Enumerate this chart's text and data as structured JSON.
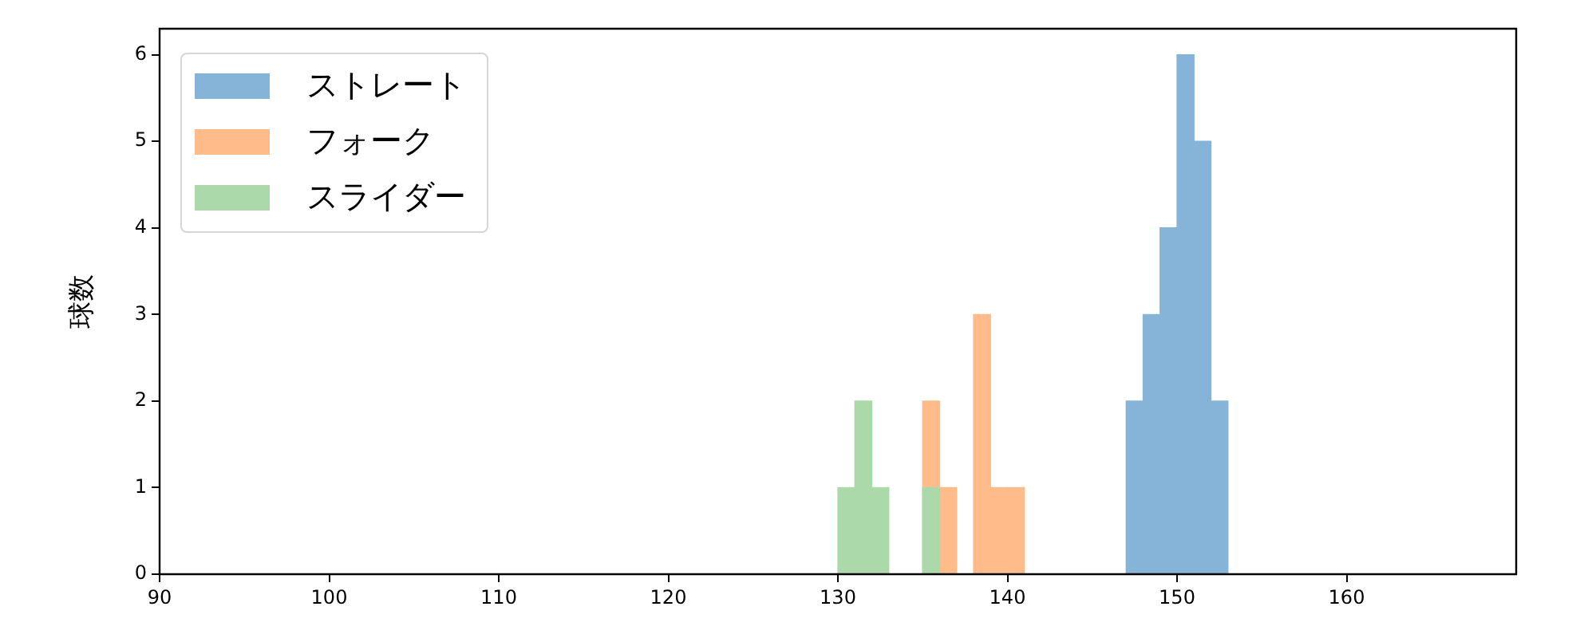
{
  "chart_data": {
    "type": "histogram",
    "ylabel": "球数",
    "bins": [
      130,
      131,
      132,
      133,
      134,
      135,
      136,
      137,
      138,
      139,
      140,
      141,
      142,
      143,
      144,
      145,
      146,
      147,
      148,
      149,
      150,
      151,
      152,
      153
    ],
    "series": [
      {
        "name": "ストレート",
        "color": "#86b4d8",
        "values": [
          0,
          0,
          0,
          0,
          0,
          0,
          0,
          0,
          0,
          0,
          0,
          0,
          0,
          0,
          0,
          0,
          0,
          2,
          3,
          4,
          6,
          5,
          2
        ]
      },
      {
        "name": "フォーク",
        "color": "#ffbc8a",
        "values": [
          0,
          0,
          0,
          0,
          0,
          2,
          1,
          0,
          3,
          1,
          1,
          0,
          0,
          0,
          0,
          0,
          0,
          0,
          0,
          0,
          0,
          0,
          0
        ]
      },
      {
        "name": "スライダー",
        "color": "#acd9aa",
        "values": [
          1,
          2,
          1,
          0,
          0,
          1,
          0,
          0,
          0,
          0,
          0,
          0,
          0,
          0,
          0,
          0,
          0,
          0,
          0,
          0,
          0,
          0,
          0
        ]
      }
    ],
    "xlim": [
      90,
      170
    ],
    "xticks": [
      90,
      100,
      110,
      120,
      130,
      140,
      150,
      160
    ],
    "ylim": [
      0,
      6.3
    ],
    "yticks": [
      0,
      1,
      2,
      3,
      4,
      5,
      6
    ],
    "legend": "top left"
  }
}
